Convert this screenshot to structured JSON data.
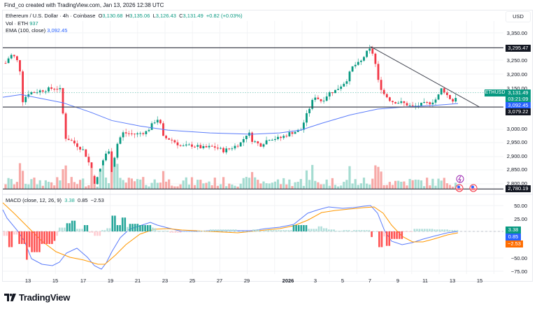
{
  "credit": "Find_co created with TradingView.com, Jan 13, 2026 12:38 UTC",
  "legend": {
    "symbol": "Ethereum / U.S. Dollar · 4h · Coinbase",
    "o_label": "O",
    "o": "3,130.68",
    "h_label": "H",
    "h": "3,135.06",
    "l_label": "L",
    "l": "3,126.43",
    "c_label": "C",
    "c": "3,131.49",
    "change": "+0.82 (+0.03%)",
    "vol_label": "Vol · ETH",
    "vol": "937",
    "ema_label": "EMA (100, close)",
    "ema": "3,092.45"
  },
  "macd_legend": {
    "label": "MACD (close, 12, 26, 9)",
    "hist": "3.38",
    "macd": "0.85",
    "signal": "−2.53"
  },
  "currency": "USD",
  "price_axis": [
    "3,350.00",
    "3,250.00",
    "3,200.00",
    "3,150.00",
    "3,000.00",
    "2,950.00",
    "2,900.00",
    "2,850.00",
    "2,800.00"
  ],
  "macd_axis": [
    "50.00",
    "25.00",
    "−50.00",
    "−75.00"
  ],
  "tags": {
    "resistance": "3,295.47",
    "symbol": "ETHUSD",
    "price": "3,131.49",
    "countdown": "03:21:09",
    "ema": "3,092.45",
    "support": "3,079.22",
    "low_line": "2,780.19",
    "macd_hist": "3.38",
    "macd_line": "0.85",
    "macd_signal": "−2.53"
  },
  "x_axis": [
    "13",
    "15",
    "17",
    "19",
    "21",
    "23",
    "25",
    "27",
    "29",
    "2026",
    "3",
    "5",
    "7",
    "9",
    "11",
    "13",
    "15"
  ],
  "brand": "TradingView",
  "colors": {
    "up": "#089981",
    "down": "#f23645",
    "ema": "#2962ff",
    "signal": "#ff9800",
    "line": "#131722"
  },
  "chart_data": [
    {
      "type": "candlestick",
      "title": "Ethereum / U.S. Dollar · 4h · Coinbase",
      "ylabel": "USD",
      "ylim": [
        2770,
        3370
      ],
      "x_ticks": [
        "13",
        "15",
        "17",
        "19",
        "21",
        "23",
        "25",
        "27",
        "29",
        "2026",
        "3",
        "5",
        "7",
        "9",
        "11",
        "13",
        "15"
      ],
      "horizontal_lines": [
        3295.47,
        3079.22,
        2780.19
      ],
      "trendline": {
        "from": [
          3300,
          "Jan 7"
        ],
        "to": [
          3079,
          "Jan 14"
        ]
      },
      "ema100_last": 3092.45,
      "last": {
        "open": 3130.68,
        "high": 3135.06,
        "low": 3126.43,
        "close": 3131.49,
        "change": 0.82,
        "change_pct": 0.03
      },
      "close_path_approx": [
        {
          "date": "Dec 12",
          "close": 3230
        },
        {
          "date": "Dec 13",
          "close": 3270
        },
        {
          "date": "Dec 14",
          "close": 3100
        },
        {
          "date": "Dec 15",
          "close": 3130
        },
        {
          "date": "Dec 15.5",
          "close": 3150
        },
        {
          "date": "Dec 16",
          "close": 2950
        },
        {
          "date": "Dec 17",
          "close": 2920
        },
        {
          "date": "Dec 18",
          "close": 2800
        },
        {
          "date": "Dec 19",
          "close": 2950
        },
        {
          "date": "Dec 20",
          "close": 2985
        },
        {
          "date": "Dec 22",
          "close": 3040
        },
        {
          "date": "Dec 23",
          "close": 2960
        },
        {
          "date": "Dec 25",
          "close": 2930
        },
        {
          "date": "Dec 27",
          "close": 2920
        },
        {
          "date": "Dec 28",
          "close": 2960
        },
        {
          "date": "Dec 29",
          "close": 2920
        },
        {
          "date": "Dec 31",
          "close": 2975
        },
        {
          "date": "Jan 2",
          "close": 3080
        },
        {
          "date": "Jan 3",
          "close": 3120
        },
        {
          "date": "Jan 5",
          "close": 3230
        },
        {
          "date": "Jan 6",
          "close": 3260
        },
        {
          "date": "Jan 7",
          "close": 3290
        },
        {
          "date": "Jan 8",
          "close": 3130
        },
        {
          "date": "Jan 9",
          "close": 3090
        },
        {
          "date": "Jan 11",
          "close": 3095
        },
        {
          "date": "Jan 12",
          "close": 3140
        },
        {
          "date": "Jan 13",
          "close": 3131.49
        }
      ]
    },
    {
      "type": "bar",
      "title": "Vol · ETH",
      "last_value": 937
    },
    {
      "type": "line",
      "title": "MACD (close, 12, 26, 9)",
      "ylim": [
        -85,
        65
      ],
      "y_ticks": [
        50,
        25,
        -50,
        -75
      ],
      "series": [
        {
          "name": "Histogram",
          "last": 3.38
        },
        {
          "name": "MACD",
          "last": 0.85
        },
        {
          "name": "Signal",
          "last": -2.53
        }
      ],
      "macd_path_approx": [
        {
          "date": "Dec 12",
          "value": 42
        },
        {
          "date": "Dec 14",
          "value": 0
        },
        {
          "date": "Dec 15",
          "value": -20
        },
        {
          "date": "Dec 17",
          "value": -55
        },
        {
          "date": "Dec 18.5",
          "value": -72
        },
        {
          "date": "Dec 19",
          "value": -55
        },
        {
          "date": "Dec 21",
          "value": -10
        },
        {
          "date": "Dec 23",
          "value": 10
        },
        {
          "date": "Dec 26",
          "value": -4
        },
        {
          "date": "Dec 31",
          "value": -1
        },
        {
          "date": "Jan 3",
          "value": 30
        },
        {
          "date": "Jan 5",
          "value": 45
        },
        {
          "date": "Jan 7",
          "value": 52
        },
        {
          "date": "Jan 8",
          "value": 5
        },
        {
          "date": "Jan 9",
          "value": -15
        },
        {
          "date": "Jan 11",
          "value": -12
        },
        {
          "date": "Jan 13",
          "value": 0.85
        }
      ]
    }
  ]
}
